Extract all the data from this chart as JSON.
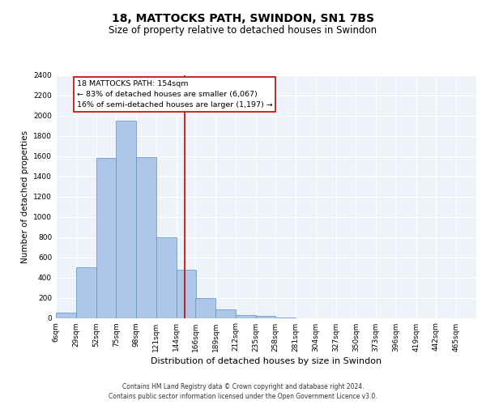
{
  "title": "18, MATTOCKS PATH, SWINDON, SN1 7BS",
  "subtitle": "Size of property relative to detached houses in Swindon",
  "xlabel": "Distribution of detached houses by size in Swindon",
  "ylabel": "Number of detached properties",
  "footer_line1": "Contains HM Land Registry data © Crown copyright and database right 2024.",
  "footer_line2": "Contains public sector information licensed under the Open Government Licence v3.0.",
  "annotation_text": "18 MATTOCKS PATH: 154sqm\n← 83% of detached houses are smaller (6,067)\n16% of semi-detached houses are larger (1,197) →",
  "bin_labels": [
    "6sqm",
    "29sqm",
    "52sqm",
    "75sqm",
    "98sqm",
    "121sqm",
    "144sqm",
    "166sqm",
    "189sqm",
    "212sqm",
    "235sqm",
    "258sqm",
    "281sqm",
    "304sqm",
    "327sqm",
    "350sqm",
    "373sqm",
    "396sqm",
    "419sqm",
    "442sqm",
    "465sqm"
  ],
  "bin_edges": [
    6,
    29,
    52,
    75,
    98,
    121,
    144,
    166,
    189,
    212,
    235,
    258,
    281,
    304,
    327,
    350,
    373,
    396,
    419,
    442,
    465
  ],
  "bar_heights": [
    50,
    500,
    1580,
    1950,
    1590,
    800,
    480,
    200,
    85,
    30,
    20,
    5,
    0,
    0,
    0,
    0,
    0,
    0,
    0,
    0
  ],
  "bar_color": "#aec6e8",
  "bar_edge_color": "#5a8fc2",
  "vline_color": "#cc0000",
  "vline_x": 154,
  "annotation_box_color": "#cc0000",
  "ylim": [
    0,
    2400
  ],
  "yticks": [
    0,
    200,
    400,
    600,
    800,
    1000,
    1200,
    1400,
    1600,
    1800,
    2000,
    2200,
    2400
  ],
  "background_color": "#eef2f9",
  "grid_color": "#ffffff",
  "title_fontsize": 10,
  "subtitle_fontsize": 8.5,
  "ylabel_fontsize": 7.5,
  "xlabel_fontsize": 8,
  "tick_fontsize": 6.5,
  "annotation_fontsize": 6.8,
  "footer_fontsize": 5.5
}
